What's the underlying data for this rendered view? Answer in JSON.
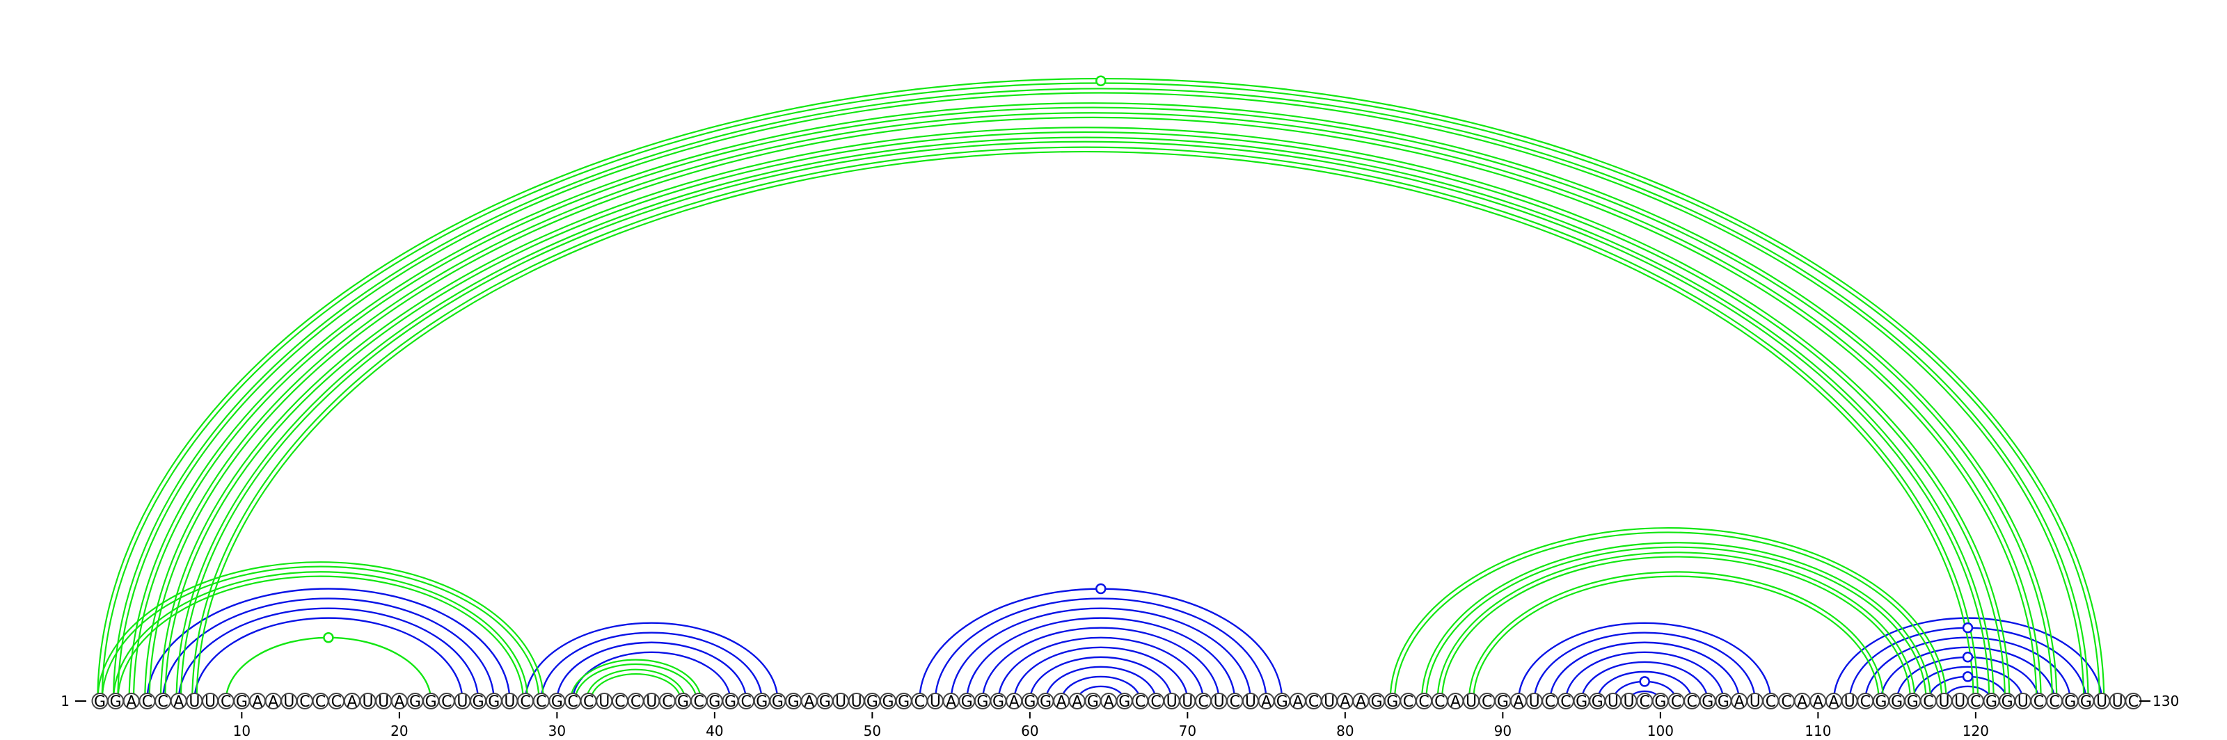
{
  "sequence": "GGACCAUUCGAAUCCCAUUAGGCUGGUCCGCCUCCUCGCGGCGGGAGUUGGGCUAGGGAGGAAGAGCCUUCUCUAGACUAAGGCCCAUCGAUCCGGUUCGCCGGAUCCAAAUCGGGCUUCGGUCCGGUUC",
  "labels": {
    "start": "1",
    "end": "130"
  },
  "ticks": [
    10,
    20,
    30,
    40,
    50,
    60,
    70,
    80,
    90,
    100,
    110,
    120
  ],
  "colors": {
    "blue": "#0a14e6",
    "green": "#12e612"
  },
  "green_arcs": [
    {
      "i": 1,
      "j": 128,
      "double": true
    },
    {
      "i": 2,
      "j": 127,
      "double": true
    },
    {
      "i": 3,
      "j": 125,
      "double": true
    },
    {
      "i": 4,
      "j": 124,
      "double": true
    },
    {
      "i": 5,
      "j": 122,
      "double": true
    },
    {
      "i": 6,
      "j": 121,
      "double": true
    },
    {
      "i": 7,
      "j": 120,
      "double": true
    },
    {
      "i": 1,
      "j": 29,
      "double": true
    },
    {
      "i": 2,
      "j": 28,
      "double": true
    },
    {
      "i": 9,
      "j": 22,
      "double": false
    },
    {
      "i": 31,
      "j": 39,
      "double": true
    },
    {
      "i": 32,
      "j": 38,
      "double": true
    },
    {
      "i": 83,
      "j": 118,
      "double": true
    },
    {
      "i": 85,
      "j": 117,
      "double": true
    },
    {
      "i": 86,
      "j": 116,
      "double": true
    },
    {
      "i": 88,
      "j": 114,
      "double": true
    }
  ],
  "blue_arcs": [
    {
      "i": 4,
      "j": 27
    },
    {
      "i": 5,
      "j": 26
    },
    {
      "i": 6,
      "j": 25
    },
    {
      "i": 7,
      "j": 24
    },
    {
      "i": 28,
      "j": 44
    },
    {
      "i": 29,
      "j": 43
    },
    {
      "i": 30,
      "j": 42
    },
    {
      "i": 31,
      "j": 41
    },
    {
      "i": 53,
      "j": 76
    },
    {
      "i": 54,
      "j": 75
    },
    {
      "i": 55,
      "j": 74
    },
    {
      "i": 56,
      "j": 73
    },
    {
      "i": 57,
      "j": 72
    },
    {
      "i": 58,
      "j": 71
    },
    {
      "i": 59,
      "j": 70
    },
    {
      "i": 60,
      "j": 69
    },
    {
      "i": 61,
      "j": 68
    },
    {
      "i": 62,
      "j": 67
    },
    {
      "i": 63,
      "j": 66
    },
    {
      "i": 91,
      "j": 107
    },
    {
      "i": 92,
      "j": 106
    },
    {
      "i": 93,
      "j": 105
    },
    {
      "i": 94,
      "j": 104
    },
    {
      "i": 95,
      "j": 103
    },
    {
      "i": 96,
      "j": 102
    },
    {
      "i": 97,
      "j": 101
    },
    {
      "i": 98,
      "j": 100
    },
    {
      "i": 111,
      "j": 128
    },
    {
      "i": 112,
      "j": 127
    },
    {
      "i": 113,
      "j": 126
    },
    {
      "i": 114,
      "j": 125
    },
    {
      "i": 115,
      "j": 124
    },
    {
      "i": 116,
      "j": 123
    },
    {
      "i": 117,
      "j": 122
    },
    {
      "i": 118,
      "j": 121
    }
  ],
  "markers": [
    {
      "a": 1,
      "b": 128,
      "color": "green"
    },
    {
      "a": 9,
      "b": 22,
      "color": "green"
    },
    {
      "a": 53,
      "b": 76,
      "color": "blue"
    },
    {
      "a": 97,
      "b": 101,
      "color": "blue"
    },
    {
      "a": 112,
      "b": 127,
      "color": "blue"
    },
    {
      "a": 115,
      "b": 124,
      "color": "blue"
    },
    {
      "a": 117,
      "b": 122,
      "color": "blue"
    }
  ]
}
